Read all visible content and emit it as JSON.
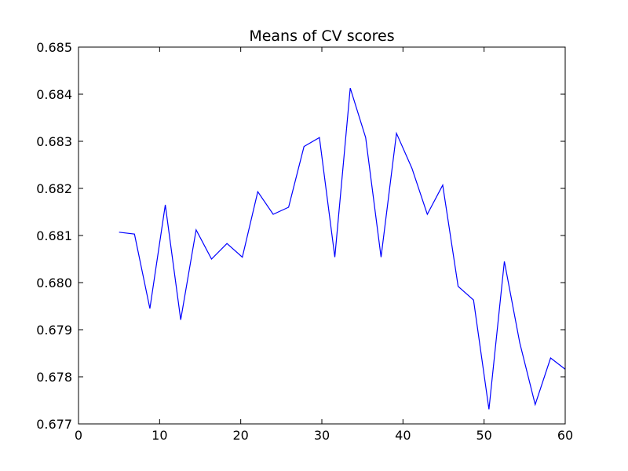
{
  "chart_data": {
    "type": "line",
    "title": "Means of CV scores",
    "xlabel": "",
    "ylabel": "",
    "xlim": [
      0,
      60
    ],
    "ylim": [
      0.677,
      0.685
    ],
    "x_ticks": [
      "0",
      "10",
      "20",
      "30",
      "40",
      "50",
      "60"
    ],
    "y_ticks": [
      "0.677",
      "0.678",
      "0.679",
      "0.680",
      "0.681",
      "0.682",
      "0.683",
      "0.684",
      "0.685"
    ],
    "grid": false,
    "series_color": "#0000ff",
    "series": [
      {
        "x": [
          5.0,
          6.9,
          8.8,
          10.7,
          12.6,
          14.5,
          16.4,
          18.3,
          20.2,
          22.1,
          24.0,
          25.9,
          27.8,
          29.7,
          31.6,
          33.5,
          35.4,
          37.3,
          39.2,
          41.1,
          43.0,
          44.9,
          46.8,
          48.7,
          50.6,
          52.5,
          54.4,
          56.3,
          58.2,
          60.0
        ],
        "y": [
          0.68107,
          0.68103,
          0.67945,
          0.68165,
          0.67921,
          0.68112,
          0.6805,
          0.68083,
          0.68054,
          0.68193,
          0.68145,
          0.6816,
          0.68289,
          0.68308,
          0.68054,
          0.68413,
          0.68308,
          0.68054,
          0.68317,
          0.68243,
          0.68145,
          0.68207,
          0.67992,
          0.67963,
          0.67731,
          0.68045,
          0.67872,
          0.67741,
          0.6784,
          0.67816
        ]
      }
    ]
  }
}
